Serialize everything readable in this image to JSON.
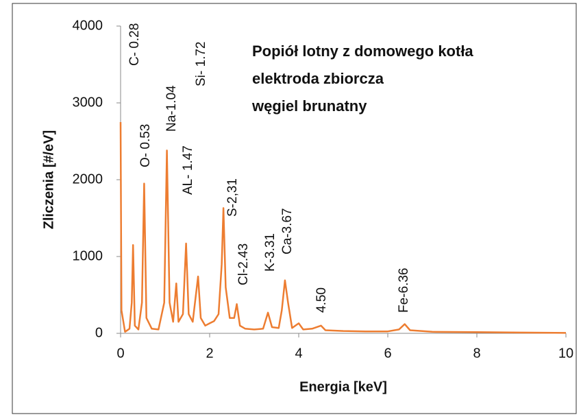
{
  "chart_data": {
    "type": "line",
    "title": [
      "Popiół lotny z domowego kotła",
      "elektroda zbiorcza",
      "węgiel brunatny"
    ],
    "xlabel": "Energia [keV]",
    "ylabel": "Zliczenia [#/eV]",
    "annotations": [
      "C- 0.28",
      "O- 0.53",
      "Na-1.04",
      "AL- 1.47",
      "Si- 1.72",
      "S-2,31",
      "Cl-2.43",
      "K-3.31",
      "Ca-3.67",
      "4.50",
      "Fe-6.36"
    ],
    "color": "#ed7d31",
    "x": [
      0,
      0.02,
      0.1,
      0.2,
      0.25,
      0.28,
      0.32,
      0.4,
      0.48,
      0.53,
      0.58,
      0.7,
      0.85,
      0.98,
      1.04,
      1.1,
      1.18,
      1.25,
      1.3,
      1.4,
      1.47,
      1.53,
      1.62,
      1.74,
      1.8,
      1.9,
      2.0,
      2.1,
      2.2,
      2.27,
      2.31,
      2.36,
      2.45,
      2.55,
      2.61,
      2.68,
      2.8,
      3.0,
      3.2,
      3.31,
      3.4,
      3.55,
      3.62,
      3.69,
      3.76,
      3.85,
      4.0,
      4.1,
      4.3,
      4.5,
      4.6,
      5.0,
      5.5,
      6.0,
      6.25,
      6.38,
      6.5,
      7.0,
      8.0,
      9.0,
      10.0
    ],
    "values": [
      2750,
      300,
      20,
      60,
      400,
      1150,
      100,
      50,
      400,
      1950,
      200,
      60,
      50,
      400,
      2380,
      400,
      150,
      650,
      150,
      250,
      1170,
      250,
      150,
      740,
      200,
      100,
      130,
      160,
      250,
      900,
      1630,
      600,
      200,
      200,
      380,
      100,
      60,
      50,
      60,
      270,
      80,
      70,
      300,
      690,
      400,
      70,
      130,
      50,
      60,
      100,
      40,
      30,
      25,
      25,
      50,
      120,
      40,
      20,
      15,
      10,
      5
    ],
    "xlim": [
      0,
      10
    ],
    "ylim": [
      0,
      4000
    ],
    "xticks": [
      0,
      2,
      4,
      6,
      8,
      10
    ],
    "yticks": [
      0,
      1000,
      2000,
      3000,
      4000
    ]
  }
}
